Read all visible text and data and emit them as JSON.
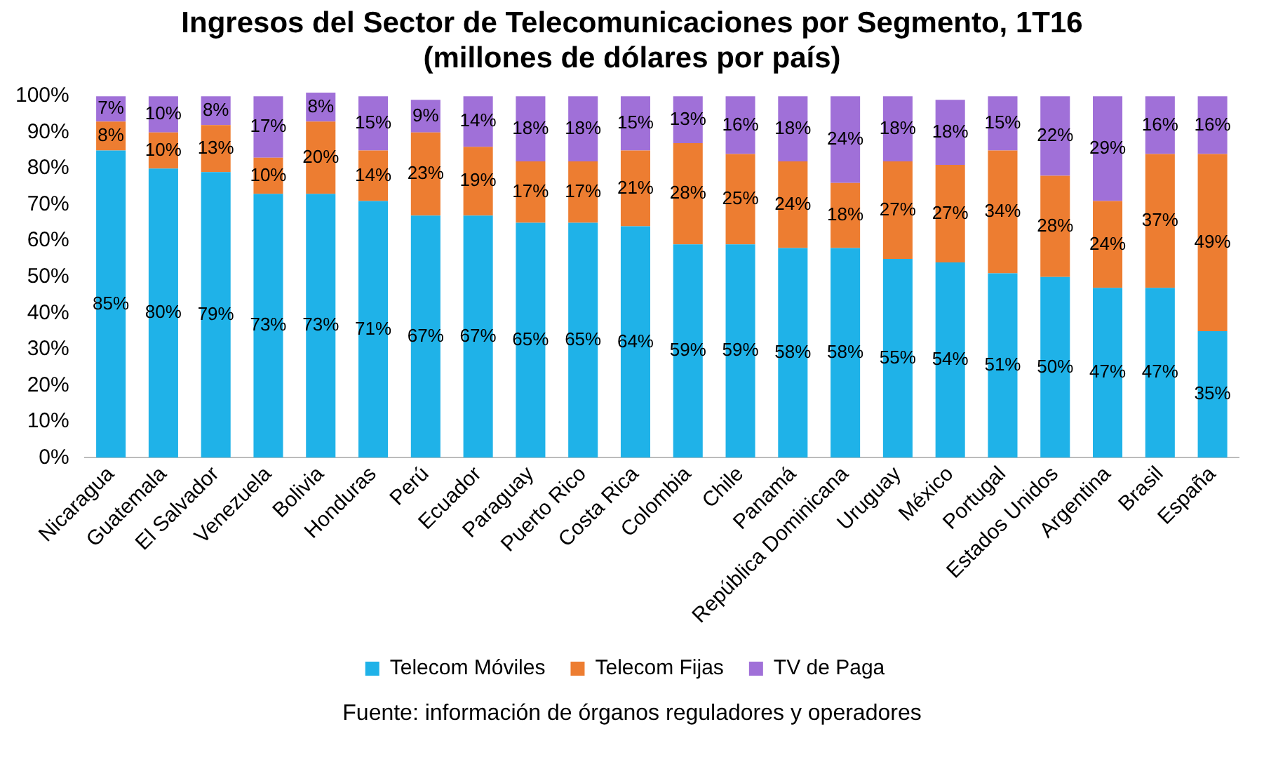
{
  "chart_data": {
    "type": "bar",
    "title": "Ingresos del Sector de Telecomunicaciones por Segmento, 1T16\n(millones de dólares por país)",
    "stacked": true,
    "legend": "bottom",
    "grid": false,
    "categories": [
      "Nicaragua",
      "Guatemala",
      "El Salvador",
      "Venezuela",
      "Bolivia",
      "Honduras",
      "Perú",
      "Ecuador",
      "Paraguay",
      "Puerto Rico",
      "Costa Rica",
      "Colombia",
      "Chile",
      "Panamá",
      "República Dominicana",
      "Uruguay",
      "México",
      "Portugal",
      "Estados Unidos",
      "Argentina",
      "Brasil",
      "España"
    ],
    "series": [
      {
        "name": "Telecom Móviles",
        "color": "#1fb2e8",
        "values": [
          85,
          80,
          79,
          73,
          73,
          71,
          67,
          67,
          65,
          65,
          64,
          59,
          59,
          58,
          58,
          55,
          54,
          51,
          50,
          47,
          47,
          35
        ],
        "value_labels": [
          "85%",
          "80%",
          "79%",
          "73%",
          "73%",
          "71%",
          "67%",
          "67%",
          "65%",
          "65%",
          "64%",
          "59%",
          "59%",
          "58%",
          "58%",
          "55%",
          "54%",
          "51%",
          "50%",
          "47%",
          "47%",
          "35%"
        ]
      },
      {
        "name": "Telecom Fijas",
        "color": "#ed7d31",
        "values": [
          8,
          10,
          13,
          10,
          20,
          14,
          23,
          19,
          17,
          17,
          21,
          28,
          25,
          24,
          18,
          27,
          27,
          34,
          28,
          24,
          37,
          49
        ],
        "value_labels": [
          "8%",
          "10%",
          "13%",
          "10%",
          "20%",
          "14%",
          "23%",
          "19%",
          "17%",
          "17%",
          "21%",
          "28%",
          "25%",
          "24%",
          "18%",
          "27%",
          "27%",
          "34%",
          "28%",
          "24%",
          "37%",
          "49%"
        ]
      },
      {
        "name": "TV de Paga",
        "color": "#a070d8",
        "values": [
          7,
          10,
          8,
          17,
          8,
          15,
          9,
          14,
          18,
          18,
          15,
          13,
          16,
          18,
          24,
          18,
          18,
          15,
          22,
          29,
          16,
          16
        ],
        "value_labels": [
          "7%",
          "10%",
          "8%",
          "17%",
          "8%",
          "15%",
          "9%",
          "14%",
          "18%",
          "18%",
          "15%",
          "13%",
          "16%",
          "18%",
          "24%",
          "18%",
          "18%",
          "15%",
          "22%",
          "29%",
          "16%",
          "16%"
        ]
      }
    ],
    "ylim": [
      0,
      101
    ],
    "yticks": [
      {
        "value": 0,
        "label": "0%"
      },
      {
        "value": 10,
        "label": "10%"
      },
      {
        "value": 20,
        "label": "20%"
      },
      {
        "value": 30,
        "label": "30%"
      },
      {
        "value": 40,
        "label": "40%"
      },
      {
        "value": 50,
        "label": "50%"
      },
      {
        "value": 60,
        "label": "60%"
      },
      {
        "value": 70,
        "label": "70%"
      },
      {
        "value": 80,
        "label": "80%"
      },
      {
        "value": 90,
        "label": "90%"
      },
      {
        "value": 100,
        "label": "100%"
      }
    ],
    "annotations": [
      "Fuente: información de órganos reguladores y operadores"
    ]
  }
}
